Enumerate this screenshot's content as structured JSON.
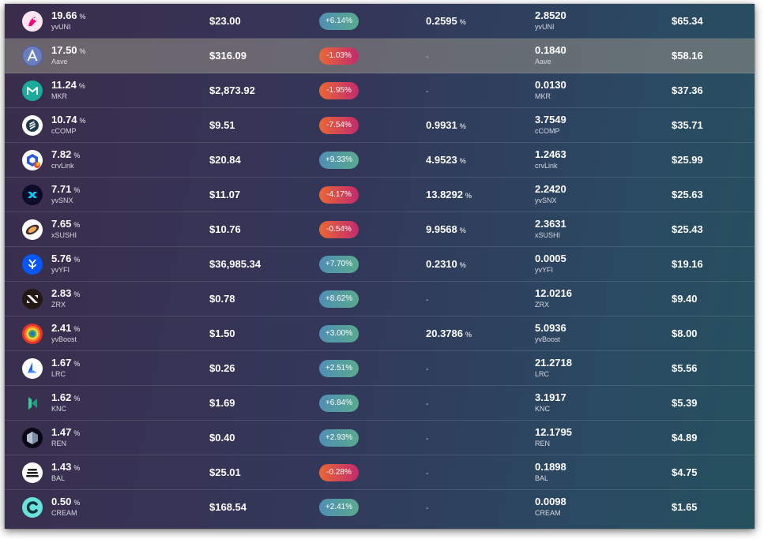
{
  "percent_unit": "%",
  "colors": {
    "positive_pill": "#4f8fb4",
    "negative_pill": "#ea6736",
    "background": "#33375a",
    "highlight_row": "#8a8678"
  },
  "rows": [
    {
      "allocation": "19.66",
      "symbol": "yvUNI",
      "price": "$23.00",
      "change": "+6.14%",
      "change_dir": "up",
      "apy": "0.2595",
      "balance": "2.8520",
      "value": "$65.34",
      "icon": "uniswap-icon",
      "highlighted": false
    },
    {
      "allocation": "17.50",
      "symbol": "Aave",
      "price": "$316.09",
      "change": "-1.03%",
      "change_dir": "down",
      "apy": "-",
      "balance": "0.1840",
      "value": "$58.16",
      "icon": "aave-icon",
      "highlighted": true
    },
    {
      "allocation": "11.24",
      "symbol": "MKR",
      "price": "$2,873.92",
      "change": "-1.95%",
      "change_dir": "down",
      "apy": "-",
      "balance": "0.0130",
      "value": "$37.36",
      "icon": "maker-icon",
      "highlighted": false
    },
    {
      "allocation": "10.74",
      "symbol": "cCOMP",
      "price": "$9.51",
      "change": "-7.54%",
      "change_dir": "down",
      "apy": "0.9931",
      "balance": "3.7549",
      "value": "$35.71",
      "icon": "compound-icon",
      "highlighted": false
    },
    {
      "allocation": "7.82",
      "symbol": "crvLink",
      "price": "$20.84",
      "change": "+9.33%",
      "change_dir": "up",
      "apy": "4.9523",
      "balance": "1.2463",
      "value": "$25.99",
      "icon": "chainlink-icon",
      "highlighted": false
    },
    {
      "allocation": "7.71",
      "symbol": "yvSNX",
      "price": "$11.07",
      "change": "-4.17%",
      "change_dir": "down",
      "apy": "13.8292",
      "balance": "2.2420",
      "value": "$25.63",
      "icon": "synthetix-icon",
      "highlighted": false
    },
    {
      "allocation": "7.65",
      "symbol": "xSUSHI",
      "price": "$10.76",
      "change": "-0.54%",
      "change_dir": "down",
      "apy": "9.9568",
      "balance": "2.3631",
      "value": "$25.43",
      "icon": "sushi-icon",
      "highlighted": false
    },
    {
      "allocation": "5.76",
      "symbol": "yvYFI",
      "price": "$36,985.34",
      "change": "+7.70%",
      "change_dir": "up",
      "apy": "0.2310",
      "balance": "0.0005",
      "value": "$19.16",
      "icon": "yearn-icon",
      "highlighted": false
    },
    {
      "allocation": "2.83",
      "symbol": "ZRX",
      "price": "$0.78",
      "change": "+8.62%",
      "change_dir": "up",
      "apy": "-",
      "balance": "12.0216",
      "value": "$9.40",
      "icon": "zrx-icon",
      "highlighted": false
    },
    {
      "allocation": "2.41",
      "symbol": "yvBoost",
      "price": "$1.50",
      "change": "+3.00%",
      "change_dir": "up",
      "apy": "20.3786",
      "balance": "5.0936",
      "value": "$8.00",
      "icon": "yvboost-icon",
      "highlighted": false
    },
    {
      "allocation": "1.67",
      "symbol": "LRC",
      "price": "$0.26",
      "change": "+2.51%",
      "change_dir": "up",
      "apy": "-",
      "balance": "21.2718",
      "value": "$5.56",
      "icon": "loopring-icon",
      "highlighted": false
    },
    {
      "allocation": "1.62",
      "symbol": "KNC",
      "price": "$1.69",
      "change": "+6.84%",
      "change_dir": "up",
      "apy": "-",
      "balance": "3.1917",
      "value": "$5.39",
      "icon": "kyber-icon",
      "highlighted": false
    },
    {
      "allocation": "1.47",
      "symbol": "REN",
      "price": "$0.40",
      "change": "+2.93%",
      "change_dir": "up",
      "apy": "-",
      "balance": "12.1795",
      "value": "$4.89",
      "icon": "ren-icon",
      "highlighted": false
    },
    {
      "allocation": "1.43",
      "symbol": "BAL",
      "price": "$25.01",
      "change": "-0.28%",
      "change_dir": "down",
      "apy": "-",
      "balance": "0.1898",
      "value": "$4.75",
      "icon": "balancer-icon",
      "highlighted": false
    },
    {
      "allocation": "0.50",
      "symbol": "CREAM",
      "price": "$168.54",
      "change": "+2.41%",
      "change_dir": "up",
      "apy": "-",
      "balance": "0.0098",
      "value": "$1.65",
      "icon": "cream-icon",
      "highlighted": false
    }
  ]
}
